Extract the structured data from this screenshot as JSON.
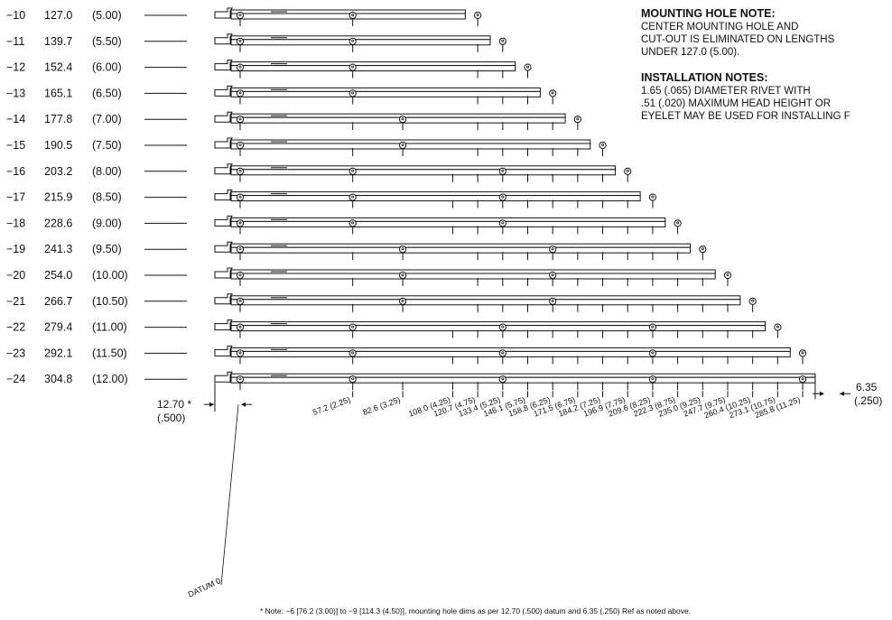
{
  "parts": [
    {
      "dash": "−10",
      "mm": "127.0",
      "inch": "(5.00)",
      "holes_mm": [
        0,
        57.2,
        120.7
      ],
      "ticks_mm": [
        57.2,
        120.7
      ]
    },
    {
      "dash": "−11",
      "mm": "139.7",
      "inch": "(5.50)",
      "holes_mm": [
        0,
        57.2,
        133.4
      ],
      "ticks_mm": [
        57.2,
        120.7,
        133.4
      ]
    },
    {
      "dash": "−12",
      "mm": "152.4",
      "inch": "(6.00)",
      "holes_mm": [
        0,
        57.2,
        146.1
      ],
      "ticks_mm": [
        57.2,
        120.7,
        133.4,
        146.1
      ]
    },
    {
      "dash": "−13",
      "mm": "165.1",
      "inch": "(6.50)",
      "holes_mm": [
        0,
        57.2,
        158.8
      ],
      "ticks_mm": [
        57.2,
        120.7,
        133.4,
        146.1,
        158.8
      ]
    },
    {
      "dash": "−14",
      "mm": "177.8",
      "inch": "(7.00)",
      "holes_mm": [
        0,
        82.6,
        171.5
      ],
      "ticks_mm": [
        57.2,
        82.6,
        120.7,
        133.4,
        146.1,
        158.8,
        171.5
      ]
    },
    {
      "dash": "−15",
      "mm": "190.5",
      "inch": "(7.50)",
      "holes_mm": [
        0,
        82.6,
        184.2
      ],
      "ticks_mm": [
        57.2,
        82.6,
        120.7,
        133.4,
        146.1,
        158.8,
        171.5,
        184.2
      ]
    },
    {
      "dash": "−16",
      "mm": "203.2",
      "inch": "(8.00)",
      "holes_mm": [
        0,
        57.2,
        133.4,
        196.9
      ],
      "ticks_mm": [
        57.2,
        108.0,
        120.7,
        133.4,
        146.1,
        158.8,
        171.5,
        184.2,
        196.9
      ]
    },
    {
      "dash": "−17",
      "mm": "215.9",
      "inch": "(8.50)",
      "holes_mm": [
        0,
        57.2,
        133.4,
        209.6
      ],
      "ticks_mm": [
        57.2,
        108.0,
        120.7,
        133.4,
        146.1,
        158.8,
        171.5,
        184.2,
        196.9,
        209.6
      ]
    },
    {
      "dash": "−18",
      "mm": "228.6",
      "inch": "(9.00)",
      "holes_mm": [
        0,
        57.2,
        133.4,
        222.3
      ],
      "ticks_mm": [
        57.2,
        108.0,
        120.7,
        133.4,
        146.1,
        158.8,
        171.5,
        184.2,
        196.9,
        209.6,
        222.3
      ]
    },
    {
      "dash": "−19",
      "mm": "241.3",
      "inch": "(9.50)",
      "holes_mm": [
        0,
        82.6,
        158.8,
        235.0
      ],
      "ticks_mm": [
        57.2,
        82.6,
        120.7,
        133.4,
        146.1,
        158.8,
        171.5,
        184.2,
        196.9,
        209.6,
        222.3,
        235.0
      ]
    },
    {
      "dash": "−20",
      "mm": "254.0",
      "inch": "(10.00)",
      "holes_mm": [
        0,
        82.6,
        158.8,
        247.7
      ],
      "ticks_mm": [
        57.2,
        82.6,
        120.7,
        133.4,
        146.1,
        158.8,
        171.5,
        184.2,
        196.9,
        209.6,
        222.3,
        235.0,
        247.7
      ]
    },
    {
      "dash": "−21",
      "mm": "266.7",
      "inch": "(10.50)",
      "holes_mm": [
        0,
        82.6,
        158.8,
        260.4
      ],
      "ticks_mm": [
        57.2,
        82.6,
        120.7,
        133.4,
        146.1,
        158.8,
        171.5,
        184.2,
        196.9,
        209.6,
        222.3,
        235.0,
        247.7,
        260.4
      ]
    },
    {
      "dash": "−22",
      "mm": "279.4",
      "inch": "(11.00)",
      "holes_mm": [
        0,
        57.2,
        133.4,
        209.6,
        273.1
      ],
      "ticks_mm": [
        57.2,
        108.0,
        120.7,
        133.4,
        146.1,
        158.8,
        171.5,
        184.2,
        196.9,
        209.6,
        222.3,
        235.0,
        247.7,
        260.4,
        273.1
      ]
    },
    {
      "dash": "−23",
      "mm": "292.1",
      "inch": "(11.50)",
      "holes_mm": [
        0,
        57.2,
        133.4,
        209.6,
        285.8
      ],
      "ticks_mm": [
        57.2,
        108.0,
        120.7,
        133.4,
        146.1,
        158.8,
        171.5,
        184.2,
        196.9,
        209.6,
        222.3,
        235.0,
        247.7,
        260.4,
        273.1,
        285.8
      ]
    },
    {
      "dash": "−24",
      "mm": "304.8",
      "inch": "(12.00)",
      "holes_mm": [
        0,
        57.2,
        133.4,
        209.6,
        285.8
      ],
      "ticks_mm": [
        57.2,
        82.6,
        108.0,
        120.7,
        133.4,
        146.1,
        158.8,
        171.5,
        184.2,
        196.9,
        209.6,
        222.3,
        235.0,
        247.7,
        260.4,
        273.1,
        285.8
      ]
    }
  ],
  "dim_labels": [
    {
      "mm": 57.2,
      "label": "57.2 (2.25)"
    },
    {
      "mm": 82.6,
      "label": "82.6 (3.25)"
    },
    {
      "mm": 108.0,
      "label": "108.0 (4.25)"
    },
    {
      "mm": 120.7,
      "label": "120.7 (4.75)"
    },
    {
      "mm": 133.4,
      "label": "133.4 (5.25)"
    },
    {
      "mm": 146.1,
      "label": "146.1 (5.75)"
    },
    {
      "mm": 158.8,
      "label": "158.8 (6.25)"
    },
    {
      "mm": 171.5,
      "label": "171.5 (6.75)"
    },
    {
      "mm": 184.2,
      "label": "184.2 (7.25)"
    },
    {
      "mm": 196.9,
      "label": "196.9 (7.75)"
    },
    {
      "mm": 209.6,
      "label": "209.6 (8.25)"
    },
    {
      "mm": 222.3,
      "label": "222.3 (8.75)"
    },
    {
      "mm": 235.0,
      "label": "235.0 (9.25)"
    },
    {
      "mm": 247.7,
      "label": "247.7 (9.75)"
    },
    {
      "mm": 260.4,
      "label": "260.4 (10.25)"
    },
    {
      "mm": 273.1,
      "label": "273.1 (10.75)"
    },
    {
      "mm": 285.8,
      "label": "285.8 (11.25)"
    }
  ],
  "left_dim": {
    "value": "12.70 *",
    "sub": "(.500)"
  },
  "right_dim": {
    "value": "6.35",
    "sub": "(.250)"
  },
  "datum_label": "DATUM 0",
  "footnote": "* Note: −6 [76.2 (3.00)] to −9 [114.3 (4.50)], mounting hole dims as per 12.70 (.500) datum and 6.35 (.250) Ref as noted above.",
  "mounting_note": {
    "heading": "MOUNTING HOLE NOTE:",
    "lines": [
      "CENTER MOUNTING HOLE AND",
      "CUT-OUT IS ELIMINATED ON LENGTHS",
      "UNDER 127.0 (5.00)."
    ]
  },
  "installation_notes": {
    "heading": "INSTALLATION NOTES:",
    "lines": [
      "1.65 (.065) DIAMETER RIVET WITH",
      ".51 (.020) MAXIMUM HEAD HEIGHT OR",
      "EYELET MAY BE USED FOR INSTALLING F"
    ]
  }
}
